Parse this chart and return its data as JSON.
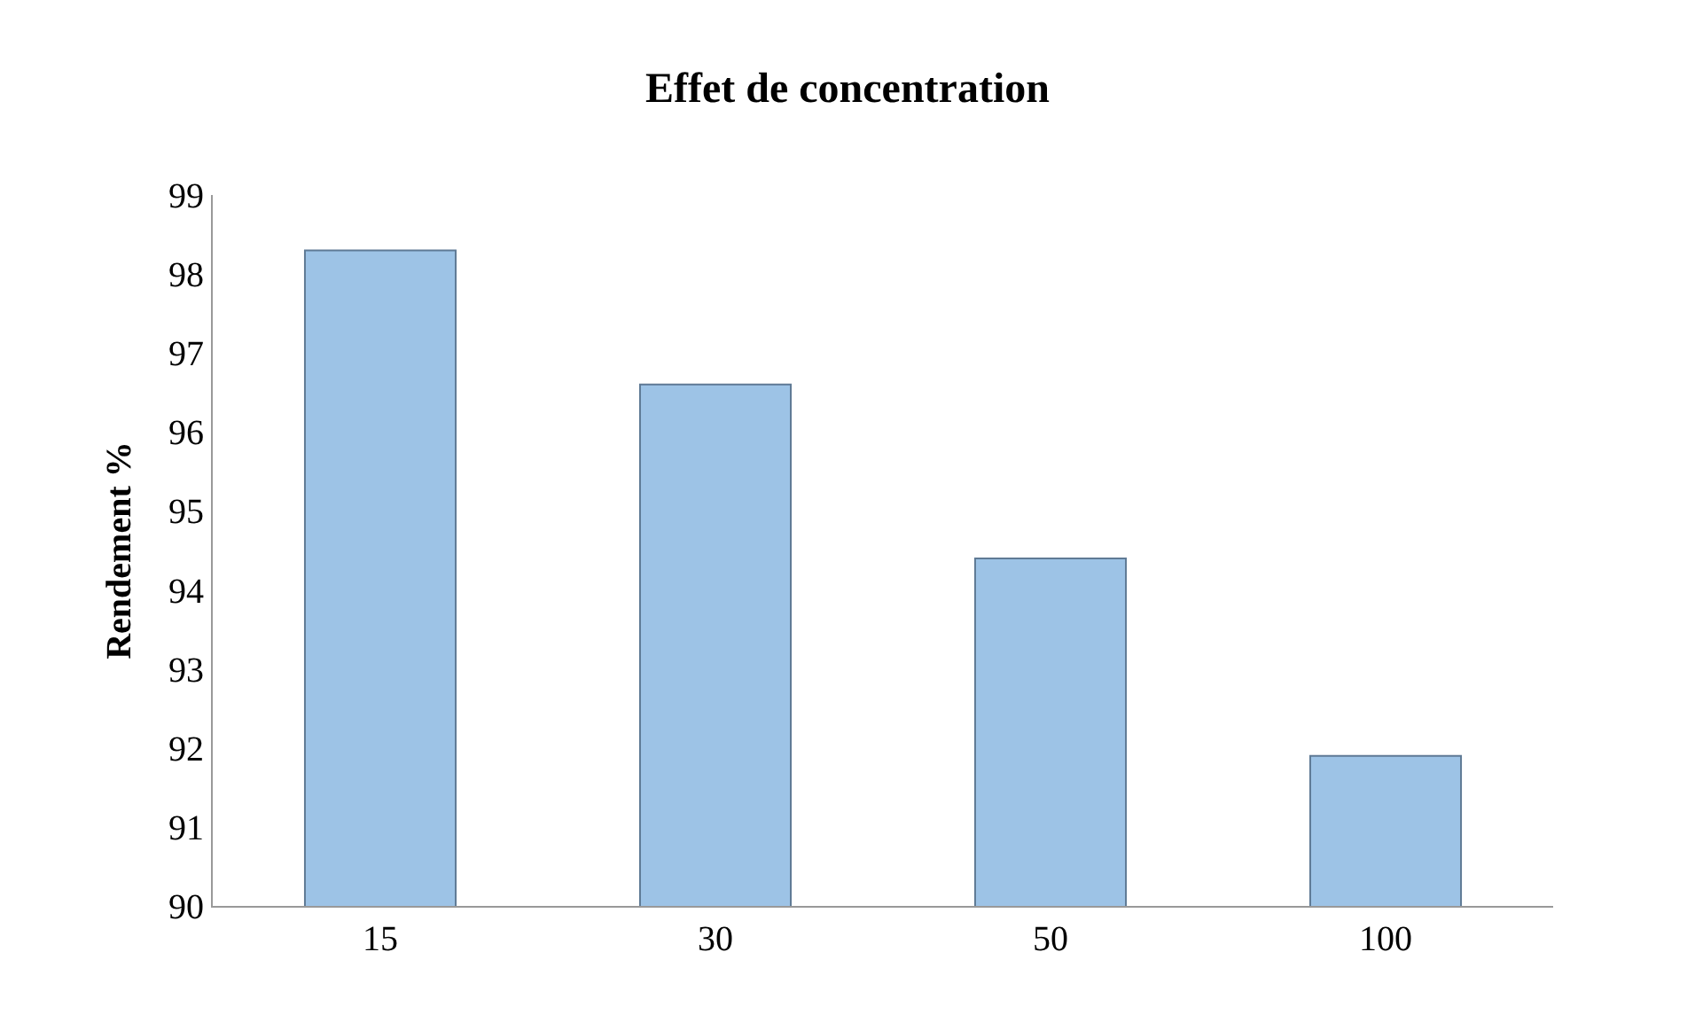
{
  "chart_data": {
    "type": "bar",
    "title": "Effet de concentration",
    "ylabel": "Rendement %",
    "categories": [
      "15",
      "30",
      "50",
      "100"
    ],
    "values": [
      98.3,
      96.6,
      94.4,
      91.9
    ],
    "color": "#9dc3e6",
    "ylim": [
      90,
      99
    ],
    "yticks": [
      90,
      91,
      92,
      93,
      94,
      95,
      96,
      97,
      98,
      99
    ]
  }
}
